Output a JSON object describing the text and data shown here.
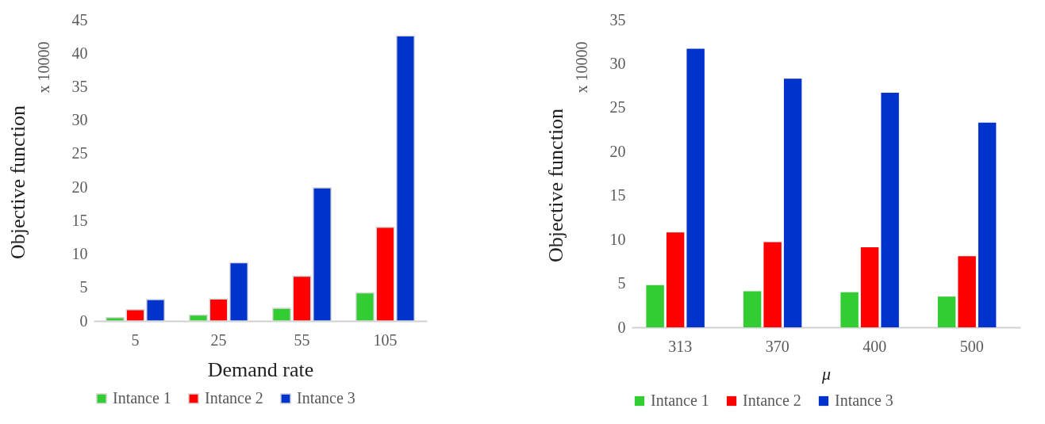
{
  "chart_data": [
    {
      "type": "bar",
      "xlabel": "Demand rate",
      "ylabel": "Objective function",
      "annotations": [
        "x 10000"
      ],
      "categories": [
        "5",
        "25",
        "55",
        "105"
      ],
      "series": [
        {
          "name": "Intance 1",
          "color": "#33cc33",
          "values": [
            0.5,
            0.9,
            1.9,
            4.2
          ]
        },
        {
          "name": "Intance 2",
          "color": "#ff0000",
          "values": [
            1.7,
            3.3,
            6.7,
            14.0
          ]
        },
        {
          "name": "Intance 3",
          "color": "#0033cc",
          "values": [
            3.2,
            8.7,
            19.9,
            42.6
          ]
        }
      ],
      "ylim": [
        0,
        45
      ],
      "yticks": [
        0,
        5,
        10,
        15,
        20,
        25,
        30,
        35,
        40,
        45
      ],
      "grid": false,
      "legend": "bottom"
    },
    {
      "type": "bar",
      "xlabel": "μ",
      "ylabel": "Objective function",
      "annotations": [
        "x 10000"
      ],
      "categories": [
        "313",
        "370",
        "400",
        "500"
      ],
      "series": [
        {
          "name": "Intance 1",
          "color": "#33cc33",
          "values": [
            4.8,
            4.1,
            4.0,
            3.5
          ]
        },
        {
          "name": "Intance 2",
          "color": "#ff0000",
          "values": [
            10.8,
            9.7,
            9.1,
            8.1
          ]
        },
        {
          "name": "Intance 3",
          "color": "#0033cc",
          "values": [
            31.7,
            28.3,
            26.7,
            23.3
          ]
        }
      ],
      "ylim": [
        0,
        35
      ],
      "yticks": [
        0,
        5,
        10,
        15,
        20,
        25,
        30,
        35
      ],
      "grid": false,
      "legend": "bottom"
    }
  ]
}
